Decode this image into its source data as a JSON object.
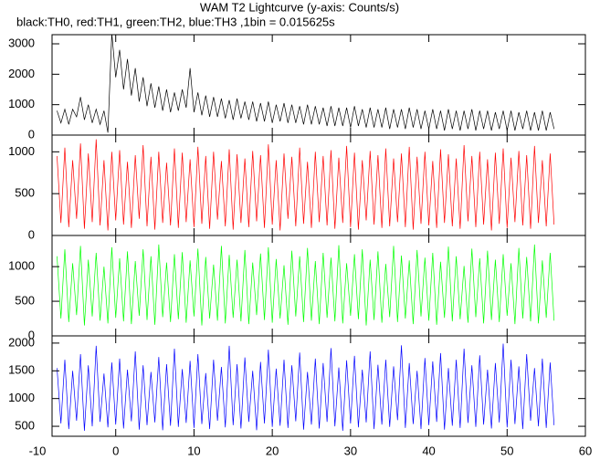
{
  "chart_data": {
    "type": "line",
    "title": "WAM T2 Lightcurve (y-axis: Counts/s)",
    "subtitle": "black:TH0, red:TH1, green:TH2, blue:TH3 ,1bin = 0.015625s",
    "xlim": [
      -10,
      60
    ],
    "xticks": [
      -10,
      0,
      10,
      20,
      30,
      40,
      50,
      60
    ],
    "x": [
      -7.5,
      -7,
      -6.5,
      -6,
      -5.5,
      -5,
      -4.5,
      -4,
      -3.5,
      -3,
      -2.5,
      -2,
      -1.5,
      -1,
      -0.5,
      0,
      0.5,
      1,
      1.5,
      2,
      2.5,
      3,
      3.5,
      4,
      4.5,
      5,
      5.5,
      6,
      6.5,
      7,
      7.5,
      8,
      8.5,
      9,
      9.5,
      10,
      10.5,
      11,
      11.5,
      12,
      12.5,
      13,
      13.5,
      14,
      14.5,
      15,
      15.5,
      16,
      16.5,
      17,
      17.5,
      18,
      18.5,
      19,
      19.5,
      20,
      20.5,
      21,
      21.5,
      22,
      22.5,
      23,
      23.5,
      24,
      24.5,
      25,
      25.5,
      26,
      26.5,
      27,
      27.5,
      28,
      28.5,
      29,
      29.5,
      30,
      30.5,
      31,
      31.5,
      32,
      32.5,
      33,
      33.5,
      34,
      34.5,
      35,
      35.5,
      36,
      36.5,
      37,
      37.5,
      38,
      38.5,
      39,
      39.5,
      40,
      40.5,
      41,
      41.5,
      42,
      42.5,
      43,
      43.5,
      44,
      44.5,
      45,
      45.5,
      46,
      46.5,
      47,
      47.5,
      48,
      48.5,
      49,
      49.5,
      50,
      50.5,
      51,
      51.5,
      52,
      52.5,
      53,
      53.5,
      54,
      54.5,
      55,
      55.5,
      56
    ],
    "panels": [
      {
        "color": "#000000",
        "ylim": [
          0,
          3300
        ],
        "yticks": [
          0,
          1000,
          2000,
          3000
        ],
        "values": [
          800,
          400,
          850,
          350,
          850,
          600,
          1250,
          500,
          1000,
          400,
          850,
          350,
          800,
          80,
          3350,
          1900,
          2800,
          1500,
          2500,
          1300,
          2200,
          1100,
          1900,
          950,
          1700,
          900,
          1600,
          800,
          1500,
          750,
          1400,
          800,
          1500,
          900,
          2200,
          750,
          1400,
          650,
          1300,
          600,
          1250,
          600,
          1200,
          550,
          1150,
          500,
          1200,
          550,
          1100,
          500,
          1100,
          450,
          1050,
          450,
          1100,
          400,
          1000,
          450,
          1050,
          400,
          1000,
          400,
          950,
          350,
          1000,
          350,
          950,
          350,
          900,
          300,
          950,
          300,
          900,
          300,
          900,
          250,
          950,
          300,
          850,
          250,
          900,
          250,
          850,
          250,
          900,
          200,
          850,
          250,
          850,
          200,
          900,
          250,
          850,
          200,
          800,
          200,
          850,
          200,
          800,
          150,
          850,
          200,
          800,
          150,
          800,
          200,
          850,
          150,
          800,
          200,
          800,
          150,
          750,
          200,
          800,
          150,
          800,
          150,
          750,
          200,
          800,
          150,
          750,
          150,
          800,
          150,
          750,
          200
        ]
      },
      {
        "color": "#ff0000",
        "ylim": [
          0,
          1200
        ],
        "yticks": [
          0,
          500,
          1000
        ],
        "values": [
          950,
          150,
          1050,
          100,
          900,
          200,
          1100,
          80,
          980,
          160,
          1150,
          120,
          900,
          60,
          1000,
          180,
          1020,
          130,
          880,
          90,
          960,
          200,
          1080,
          110,
          940,
          70,
          1000,
          150,
          870,
          120,
          1040,
          90,
          990,
          160,
          910,
          100,
          1060,
          140,
          950,
          80,
          1000,
          190,
          890,
          110,
          1030,
          70,
          970,
          150,
          920,
          100,
          1010,
          170,
          960,
          90,
          1090,
          130,
          900,
          60,
          980,
          200,
          940,
          110,
          1050,
          140,
          880,
          90,
          1000,
          160,
          950,
          120,
          1020,
          80,
          930,
          150,
          1070,
          100,
          990,
          70,
          900,
          180,
          1010,
          130,
          960,
          90,
          1040,
          110,
          920,
          160,
          980,
          100,
          1060,
          70,
          940,
          140,
          1000,
          120,
          890,
          90,
          1030,
          150,
          970,
          110,
          920,
          80,
          1080,
          170,
          950,
          100,
          1000,
          130,
          910,
          60,
          990,
          140,
          1040,
          90,
          930,
          160,
          1010,
          120,
          960,
          80,
          1070,
          150,
          900,
          110,
          980,
          130
        ]
      },
      {
        "color": "#00ff00",
        "ylim": [
          0,
          1450
        ],
        "yticks": [
          0,
          500,
          1000
        ],
        "values": [
          1150,
          250,
          1250,
          200,
          1050,
          300,
          1300,
          150,
          1100,
          280,
          1200,
          220,
          1000,
          180,
          1280,
          260,
          1120,
          210,
          1220,
          170,
          1080,
          290,
          1250,
          230,
          1150,
          160,
          1320,
          270,
          1060,
          200,
          1180,
          240,
          1210,
          190,
          1090,
          280,
          1260,
          150,
          1140,
          250,
          1030,
          220,
          1300,
          180,
          1170,
          260,
          1100,
          210,
          1240,
          170,
          1060,
          300,
          1190,
          230,
          1280,
          190,
          1110,
          250,
          1020,
          160,
          1230,
          280,
          1150,
          200,
          1270,
          220,
          1080,
          170,
          1200,
          260,
          1130,
          210,
          1310,
          180,
          1050,
          290,
          1180,
          240,
          1250,
          150,
          1100,
          230,
          1220,
          190,
          1040,
          270,
          1300,
          200,
          1160,
          250,
          1090,
          170,
          1240,
          280,
          1130,
          220,
          1200,
          160,
          1070,
          260,
          1290,
          210,
          1150,
          240,
          1010,
          190,
          1260,
          270,
          1120,
          180,
          1230,
          230,
          1100,
          200,
          1180,
          290,
          1050,
          170,
          1270,
          250,
          1140,
          210,
          1320,
          180,
          1090,
          260,
          1200,
          220
        ]
      },
      {
        "color": "#0000ff",
        "ylim": [
          320,
          2130
        ],
        "yticks": [
          500,
          1000,
          1500,
          2000
        ],
        "values": [
          1550,
          550,
          1700,
          450,
          1500,
          600,
          1800,
          420,
          1600,
          500,
          1950,
          580,
          1450,
          480,
          1650,
          530,
          1720,
          460,
          1520,
          590,
          1850,
          440,
          1600,
          520,
          1480,
          570,
          1750,
          430,
          1620,
          510,
          1900,
          490,
          1530,
          560,
          1680,
          470,
          1800,
          540,
          1460,
          450,
          1700,
          600,
          1570,
          480,
          1950,
          520,
          1620,
          460,
          1740,
          580,
          1500,
          430,
          1660,
          550,
          1880,
          490,
          1540,
          510,
          1700,
          470,
          1600,
          590,
          1830,
          440,
          1480,
          530,
          1720,
          460,
          1640,
          580,
          1910,
          500,
          1560,
          420,
          1690,
          550,
          1770,
          480,
          1520,
          570,
          1850,
          450,
          1610,
          530,
          1700,
          490,
          1580,
          610,
          1960,
          470,
          1640,
          540,
          1500,
          450,
          1730,
          520,
          1670,
          580,
          1820,
          440,
          1550,
          510,
          1700,
          470,
          1900,
          560,
          1600,
          490,
          1780,
          530,
          1520,
          460,
          1640,
          570,
          1990,
          480,
          1700,
          540,
          1580,
          450,
          1800,
          600,
          1550,
          500,
          1720,
          470,
          1650,
          520
        ]
      }
    ]
  }
}
